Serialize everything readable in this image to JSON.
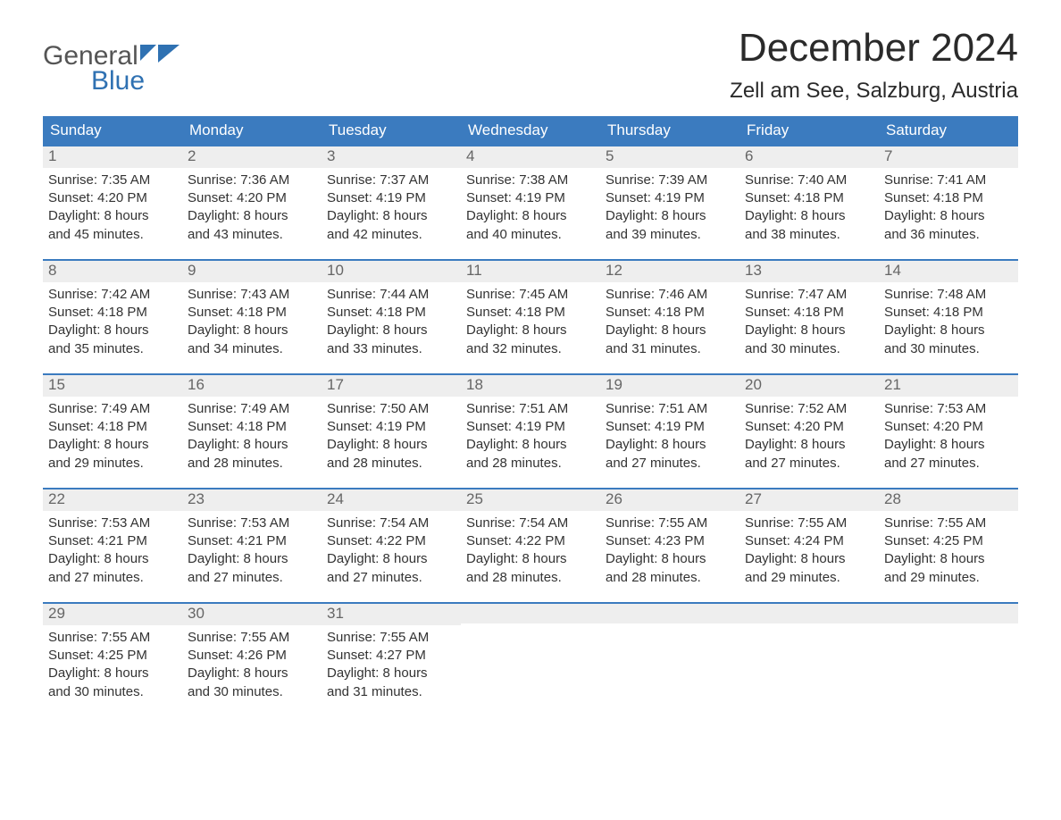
{
  "logo": {
    "word1": "General",
    "word2": "Blue"
  },
  "title": "December 2024",
  "location": "Zell am See, Salzburg, Austria",
  "colors": {
    "brand_blue": "#3b7bbf",
    "logo_blue": "#2f71b2",
    "header_bg": "#3b7bbf",
    "header_text": "#ffffff",
    "daynum_bg": "#eeeeee",
    "daynum_text": "#666666",
    "body_text": "#333333",
    "week_border": "#3b7bbf",
    "page_bg": "#ffffff"
  },
  "typography": {
    "title_fontsize": 44,
    "location_fontsize": 24,
    "dow_fontsize": 17,
    "daynum_fontsize": 17,
    "body_fontsize": 15,
    "font_family": "Arial"
  },
  "days_of_week": [
    "Sunday",
    "Monday",
    "Tuesday",
    "Wednesday",
    "Thursday",
    "Friday",
    "Saturday"
  ],
  "weeks": [
    [
      {
        "num": "1",
        "sunrise": "Sunrise: 7:35 AM",
        "sunset": "Sunset: 4:20 PM",
        "day1": "Daylight: 8 hours",
        "day2": "and 45 minutes."
      },
      {
        "num": "2",
        "sunrise": "Sunrise: 7:36 AM",
        "sunset": "Sunset: 4:20 PM",
        "day1": "Daylight: 8 hours",
        "day2": "and 43 minutes."
      },
      {
        "num": "3",
        "sunrise": "Sunrise: 7:37 AM",
        "sunset": "Sunset: 4:19 PM",
        "day1": "Daylight: 8 hours",
        "day2": "and 42 minutes."
      },
      {
        "num": "4",
        "sunrise": "Sunrise: 7:38 AM",
        "sunset": "Sunset: 4:19 PM",
        "day1": "Daylight: 8 hours",
        "day2": "and 40 minutes."
      },
      {
        "num": "5",
        "sunrise": "Sunrise: 7:39 AM",
        "sunset": "Sunset: 4:19 PM",
        "day1": "Daylight: 8 hours",
        "day2": "and 39 minutes."
      },
      {
        "num": "6",
        "sunrise": "Sunrise: 7:40 AM",
        "sunset": "Sunset: 4:18 PM",
        "day1": "Daylight: 8 hours",
        "day2": "and 38 minutes."
      },
      {
        "num": "7",
        "sunrise": "Sunrise: 7:41 AM",
        "sunset": "Sunset: 4:18 PM",
        "day1": "Daylight: 8 hours",
        "day2": "and 36 minutes."
      }
    ],
    [
      {
        "num": "8",
        "sunrise": "Sunrise: 7:42 AM",
        "sunset": "Sunset: 4:18 PM",
        "day1": "Daylight: 8 hours",
        "day2": "and 35 minutes."
      },
      {
        "num": "9",
        "sunrise": "Sunrise: 7:43 AM",
        "sunset": "Sunset: 4:18 PM",
        "day1": "Daylight: 8 hours",
        "day2": "and 34 minutes."
      },
      {
        "num": "10",
        "sunrise": "Sunrise: 7:44 AM",
        "sunset": "Sunset: 4:18 PM",
        "day1": "Daylight: 8 hours",
        "day2": "and 33 minutes."
      },
      {
        "num": "11",
        "sunrise": "Sunrise: 7:45 AM",
        "sunset": "Sunset: 4:18 PM",
        "day1": "Daylight: 8 hours",
        "day2": "and 32 minutes."
      },
      {
        "num": "12",
        "sunrise": "Sunrise: 7:46 AM",
        "sunset": "Sunset: 4:18 PM",
        "day1": "Daylight: 8 hours",
        "day2": "and 31 minutes."
      },
      {
        "num": "13",
        "sunrise": "Sunrise: 7:47 AM",
        "sunset": "Sunset: 4:18 PM",
        "day1": "Daylight: 8 hours",
        "day2": "and 30 minutes."
      },
      {
        "num": "14",
        "sunrise": "Sunrise: 7:48 AM",
        "sunset": "Sunset: 4:18 PM",
        "day1": "Daylight: 8 hours",
        "day2": "and 30 minutes."
      }
    ],
    [
      {
        "num": "15",
        "sunrise": "Sunrise: 7:49 AM",
        "sunset": "Sunset: 4:18 PM",
        "day1": "Daylight: 8 hours",
        "day2": "and 29 minutes."
      },
      {
        "num": "16",
        "sunrise": "Sunrise: 7:49 AM",
        "sunset": "Sunset: 4:18 PM",
        "day1": "Daylight: 8 hours",
        "day2": "and 28 minutes."
      },
      {
        "num": "17",
        "sunrise": "Sunrise: 7:50 AM",
        "sunset": "Sunset: 4:19 PM",
        "day1": "Daylight: 8 hours",
        "day2": "and 28 minutes."
      },
      {
        "num": "18",
        "sunrise": "Sunrise: 7:51 AM",
        "sunset": "Sunset: 4:19 PM",
        "day1": "Daylight: 8 hours",
        "day2": "and 28 minutes."
      },
      {
        "num": "19",
        "sunrise": "Sunrise: 7:51 AM",
        "sunset": "Sunset: 4:19 PM",
        "day1": "Daylight: 8 hours",
        "day2": "and 27 minutes."
      },
      {
        "num": "20",
        "sunrise": "Sunrise: 7:52 AM",
        "sunset": "Sunset: 4:20 PM",
        "day1": "Daylight: 8 hours",
        "day2": "and 27 minutes."
      },
      {
        "num": "21",
        "sunrise": "Sunrise: 7:53 AM",
        "sunset": "Sunset: 4:20 PM",
        "day1": "Daylight: 8 hours",
        "day2": "and 27 minutes."
      }
    ],
    [
      {
        "num": "22",
        "sunrise": "Sunrise: 7:53 AM",
        "sunset": "Sunset: 4:21 PM",
        "day1": "Daylight: 8 hours",
        "day2": "and 27 minutes."
      },
      {
        "num": "23",
        "sunrise": "Sunrise: 7:53 AM",
        "sunset": "Sunset: 4:21 PM",
        "day1": "Daylight: 8 hours",
        "day2": "and 27 minutes."
      },
      {
        "num": "24",
        "sunrise": "Sunrise: 7:54 AM",
        "sunset": "Sunset: 4:22 PM",
        "day1": "Daylight: 8 hours",
        "day2": "and 27 minutes."
      },
      {
        "num": "25",
        "sunrise": "Sunrise: 7:54 AM",
        "sunset": "Sunset: 4:22 PM",
        "day1": "Daylight: 8 hours",
        "day2": "and 28 minutes."
      },
      {
        "num": "26",
        "sunrise": "Sunrise: 7:55 AM",
        "sunset": "Sunset: 4:23 PM",
        "day1": "Daylight: 8 hours",
        "day2": "and 28 minutes."
      },
      {
        "num": "27",
        "sunrise": "Sunrise: 7:55 AM",
        "sunset": "Sunset: 4:24 PM",
        "day1": "Daylight: 8 hours",
        "day2": "and 29 minutes."
      },
      {
        "num": "28",
        "sunrise": "Sunrise: 7:55 AM",
        "sunset": "Sunset: 4:25 PM",
        "day1": "Daylight: 8 hours",
        "day2": "and 29 minutes."
      }
    ],
    [
      {
        "num": "29",
        "sunrise": "Sunrise: 7:55 AM",
        "sunset": "Sunset: 4:25 PM",
        "day1": "Daylight: 8 hours",
        "day2": "and 30 minutes."
      },
      {
        "num": "30",
        "sunrise": "Sunrise: 7:55 AM",
        "sunset": "Sunset: 4:26 PM",
        "day1": "Daylight: 8 hours",
        "day2": "and 30 minutes."
      },
      {
        "num": "31",
        "sunrise": "Sunrise: 7:55 AM",
        "sunset": "Sunset: 4:27 PM",
        "day1": "Daylight: 8 hours",
        "day2": "and 31 minutes."
      },
      {
        "empty": true
      },
      {
        "empty": true
      },
      {
        "empty": true
      },
      {
        "empty": true
      }
    ]
  ]
}
